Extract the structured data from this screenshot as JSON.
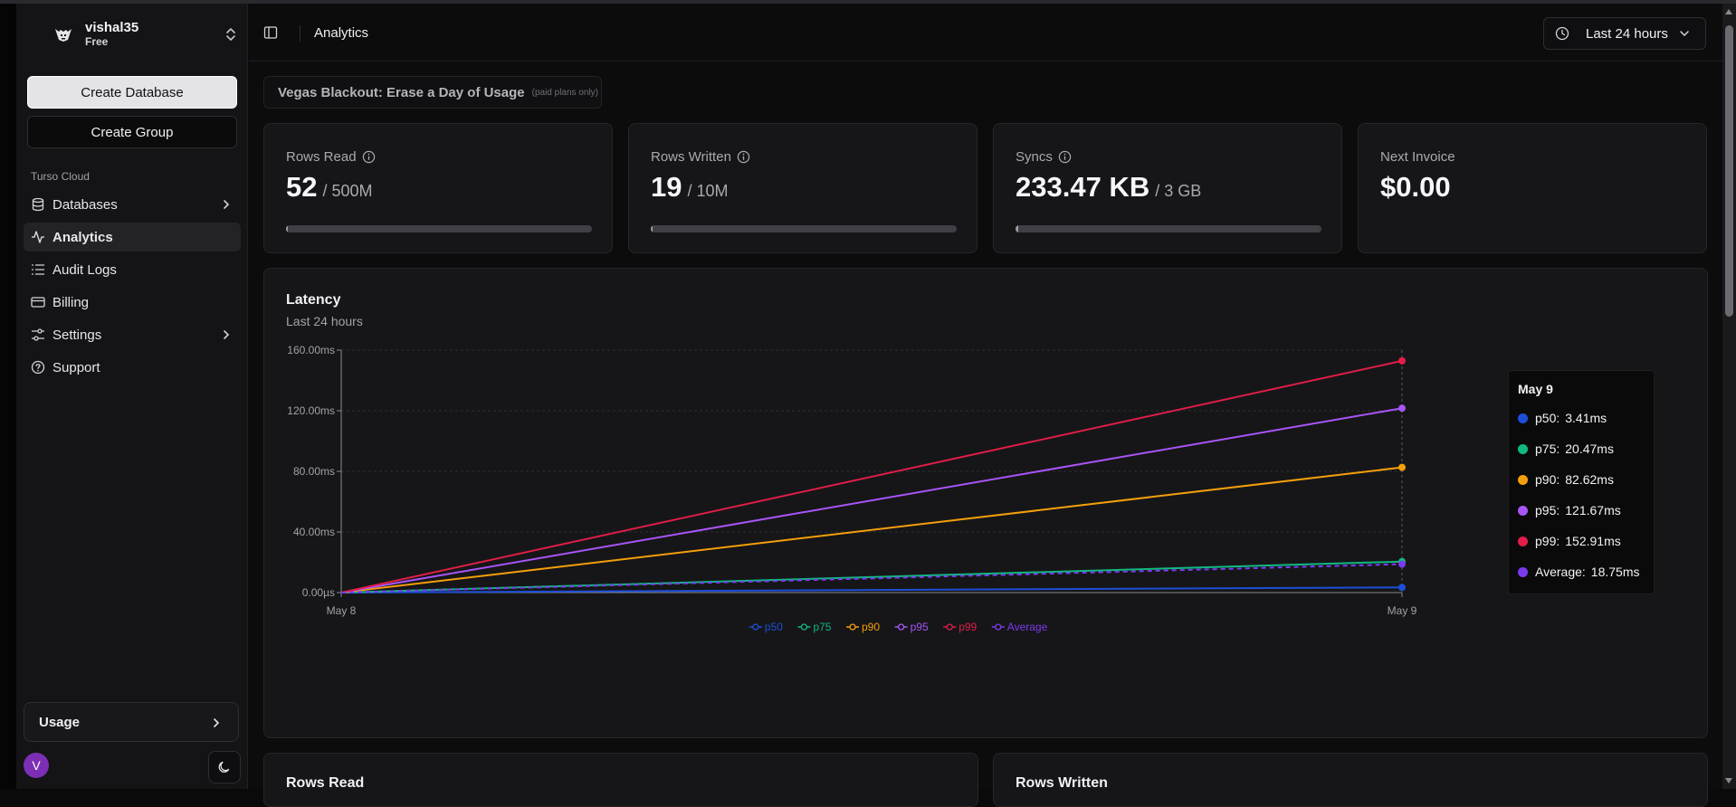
{
  "sidebar": {
    "org_name": "vishal35",
    "org_plan": "Free",
    "create_database_label": "Create Database",
    "create_group_label": "Create Group",
    "section_label": "Turso Cloud",
    "items": [
      {
        "label": "Databases",
        "icon": "database-icon",
        "has_chevron": true,
        "active": false
      },
      {
        "label": "Analytics",
        "icon": "activity-icon",
        "has_chevron": false,
        "active": true
      },
      {
        "label": "Audit Logs",
        "icon": "list-icon",
        "has_chevron": false,
        "active": false
      },
      {
        "label": "Billing",
        "icon": "credit-card-icon",
        "has_chevron": false,
        "active": false
      },
      {
        "label": "Settings",
        "icon": "settings-sliders-icon",
        "has_chevron": true,
        "active": false
      },
      {
        "label": "Support",
        "icon": "help-circle-icon",
        "has_chevron": false,
        "active": false
      }
    ],
    "usage_label": "Usage",
    "avatar_initial": "V"
  },
  "header": {
    "title": "Analytics",
    "time_range": "Last 24 hours"
  },
  "promo": {
    "title": "Vegas Blackout: Erase a Day of Usage",
    "note": "(paid plans only)"
  },
  "stats": [
    {
      "label": "Rows Read",
      "value": "52",
      "limit": "/ 500M",
      "has_info": true,
      "progress": 0.005
    },
    {
      "label": "Rows Written",
      "value": "19",
      "limit": "/ 10M",
      "has_info": true,
      "progress": 0.005
    },
    {
      "label": "Syncs",
      "value": "233.47 KB",
      "limit": "/ 3 GB",
      "has_info": true,
      "progress": 0.01
    },
    {
      "label": "Next Invoice",
      "value": "$0.00",
      "limit": "",
      "has_info": false
    }
  ],
  "latency": {
    "title": "Latency",
    "subtitle": "Last 24 hours",
    "tooltip": {
      "date": "May 9",
      "rows": [
        {
          "name": "p50:",
          "value": "3.41ms",
          "color": "#1d4ed8"
        },
        {
          "name": "p75:",
          "value": "20.47ms",
          "color": "#10b981"
        },
        {
          "name": "p90:",
          "value": "82.62ms",
          "color": "#f59e0b"
        },
        {
          "name": "p95:",
          "value": "121.67ms",
          "color": "#a855f7"
        },
        {
          "name": "p99:",
          "value": "152.91ms",
          "color": "#e11d48"
        },
        {
          "name": "Average:",
          "value": "18.75ms",
          "color": "#7c3aed"
        }
      ]
    }
  },
  "chart_data": {
    "type": "line",
    "x": [
      "May 8",
      "May 9"
    ],
    "ylim": [
      0,
      160
    ],
    "y_ticks": [
      "0.00µs",
      "40.00ms",
      "80.00ms",
      "120.00ms",
      "160.00ms"
    ],
    "grid": true,
    "legend_position": "bottom-center",
    "series": [
      {
        "name": "p50",
        "values": [
          0,
          3.41
        ],
        "color": "#1d4ed8",
        "dashed": false
      },
      {
        "name": "p75",
        "values": [
          0,
          20.47
        ],
        "color": "#10b981",
        "dashed": false
      },
      {
        "name": "p90",
        "values": [
          0,
          82.62
        ],
        "color": "#f59e0b",
        "dashed": false
      },
      {
        "name": "p95",
        "values": [
          0,
          121.67
        ],
        "color": "#a855f7",
        "dashed": false
      },
      {
        "name": "p99",
        "values": [
          0,
          152.91
        ],
        "color": "#e11d48",
        "dashed": false
      },
      {
        "name": "Average",
        "values": [
          0,
          18.75
        ],
        "color": "#7c3aed",
        "dashed": true
      }
    ]
  },
  "bottom_cards": [
    "Rows Read",
    "Rows Written"
  ]
}
